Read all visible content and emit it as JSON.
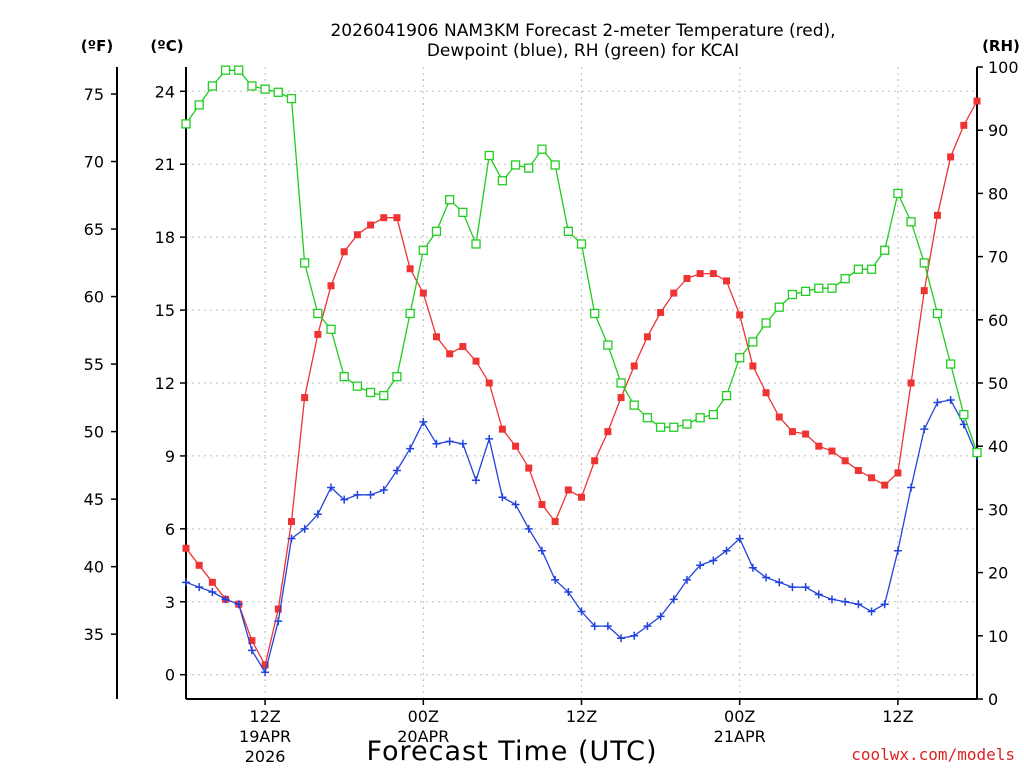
{
  "chart_data": {
    "type": "line",
    "title_line1": "2026041906 NAM3KM Forecast 2-meter Temperature (red),",
    "title_line2": "Dewpoint (blue), RH (green) for KCAI",
    "xlabel": "Forecast Time (UTC)",
    "credit": "coolwx.com/models",
    "unit_f": "(ºF)",
    "unit_c": "(ºC)",
    "unit_rh": "(RH)",
    "x_range_hours": [
      0,
      60
    ],
    "temp_c_range": [
      -1.0,
      25.0
    ],
    "rh_range": [
      0,
      100
    ],
    "left_f_ticks": [
      "35",
      "40",
      "45",
      "50",
      "55",
      "60",
      "65",
      "70",
      "75"
    ],
    "left_f_values": [
      35,
      40,
      45,
      50,
      55,
      60,
      65,
      70,
      75
    ],
    "left_c_ticks": [
      "0",
      "3",
      "6",
      "9",
      "12",
      "15",
      "18",
      "21",
      "24"
    ],
    "left_c_values": [
      0,
      3,
      6,
      9,
      12,
      15,
      18,
      21,
      24
    ],
    "right_rh_ticks": [
      "0",
      "10",
      "20",
      "30",
      "40",
      "50",
      "60",
      "70",
      "80",
      "90",
      "100"
    ],
    "right_rh_values": [
      0,
      10,
      20,
      30,
      40,
      50,
      60,
      70,
      80,
      90,
      100
    ],
    "x_ticks": [
      {
        "hour": 6,
        "label": "12Z",
        "sub1": "19APR",
        "sub2": "2026"
      },
      {
        "hour": 18,
        "label": "00Z",
        "sub1": "20APR",
        "sub2": ""
      },
      {
        "hour": 30,
        "label": "12Z",
        "sub1": "",
        "sub2": ""
      },
      {
        "hour": 42,
        "label": "00Z",
        "sub1": "21APR",
        "sub2": ""
      },
      {
        "hour": 54,
        "label": "12Z",
        "sub1": "",
        "sub2": ""
      }
    ],
    "series": [
      {
        "name": "2-meter Temperature",
        "color": "#ee3333",
        "marker": "filled-square",
        "axis": "celsius",
        "values": [
          5.2,
          4.5,
          3.8,
          3.1,
          2.9,
          1.4,
          0.4,
          2.7,
          6.3,
          11.4,
          14.0,
          16.0,
          17.4,
          18.1,
          18.5,
          18.8,
          18.8,
          16.7,
          15.7,
          13.9,
          13.2,
          13.5,
          12.9,
          12.0,
          10.1,
          9.4,
          8.5,
          7.0,
          6.3,
          7.6,
          7.3,
          8.8,
          10.0,
          11.4,
          12.7,
          13.9,
          14.9,
          15.7,
          16.3,
          16.5,
          16.5,
          16.2,
          14.8,
          12.7,
          11.6,
          10.6,
          10.0,
          9.9,
          9.4,
          9.2,
          8.8,
          8.4,
          8.1,
          7.8,
          8.3,
          12.0,
          15.8,
          18.9,
          21.3,
          22.6,
          23.6
        ]
      },
      {
        "name": "Dewpoint",
        "color": "#2244dd",
        "marker": "plus",
        "axis": "celsius",
        "values": [
          3.8,
          3.6,
          3.4,
          3.1,
          2.9,
          1.0,
          0.1,
          2.2,
          5.6,
          6.0,
          6.6,
          7.7,
          7.2,
          7.4,
          7.4,
          7.6,
          8.4,
          9.3,
          10.4,
          9.5,
          9.6,
          9.5,
          8.0,
          9.7,
          7.3,
          7.0,
          6.0,
          5.1,
          3.9,
          3.4,
          2.6,
          2.0,
          2.0,
          1.5,
          1.6,
          2.0,
          2.4,
          3.1,
          3.9,
          4.5,
          4.7,
          5.1,
          5.6,
          4.4,
          4.0,
          3.8,
          3.6,
          3.6,
          3.3,
          3.1,
          3.0,
          2.9,
          2.6,
          2.9,
          5.1,
          7.7,
          10.1,
          11.2,
          11.3,
          10.3,
          9.0
        ]
      },
      {
        "name": "RH",
        "color": "#22cc22",
        "marker": "open-square",
        "axis": "rh",
        "values": [
          91,
          94,
          97,
          99.5,
          99.5,
          97,
          96.5,
          96,
          95,
          69,
          61,
          58.5,
          51,
          49.5,
          48.5,
          48,
          51,
          61,
          71,
          74,
          79,
          77,
          72,
          86,
          82,
          84.5,
          84,
          87,
          84.5,
          74,
          72,
          61,
          56,
          50,
          46.5,
          44.5,
          43,
          43,
          43.5,
          44.5,
          45,
          48,
          54,
          56.5,
          59.5,
          62,
          64,
          64.5,
          65,
          65,
          66.5,
          68,
          68,
          71,
          80,
          75.5,
          69,
          61,
          53,
          45,
          39
        ]
      }
    ]
  }
}
